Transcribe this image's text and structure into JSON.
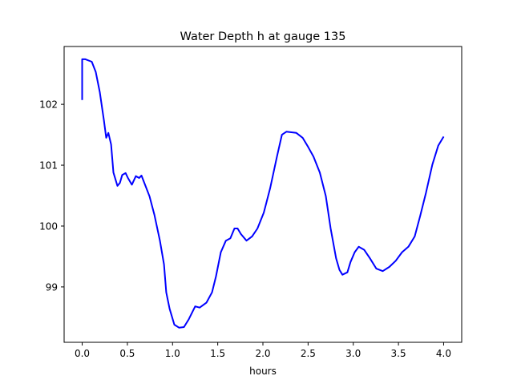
{
  "chart_data": {
    "type": "line",
    "title": "Water Depth h at gauge 135",
    "xlabel": "hours",
    "ylabel": "",
    "xlim": [
      -0.2,
      4.2
    ],
    "ylim": [
      98.09,
      102.95
    ],
    "xticks": [
      0.0,
      0.5,
      1.0,
      1.5,
      2.0,
      2.5,
      3.0,
      3.5,
      4.0
    ],
    "xtick_labels": [
      "0.0",
      "0.5",
      "1.0",
      "1.5",
      "2.0",
      "2.5",
      "3.0",
      "3.5",
      "4.0"
    ],
    "yticks": [
      99,
      100,
      101,
      102
    ],
    "ytick_labels": [
      "99",
      "100",
      "101",
      "102"
    ],
    "grid": false,
    "series": [
      {
        "name": "h",
        "color": "#0000ff",
        "x": [
          0,
          0,
          0.035,
          0.106,
          0.15,
          0.195,
          0.24,
          0.266,
          0.29,
          0.32,
          0.346,
          0.39,
          0.417,
          0.443,
          0.48,
          0.506,
          0.55,
          0.594,
          0.63,
          0.656,
          0.7,
          0.745,
          0.8,
          0.86,
          0.905,
          0.93,
          0.967,
          1.02,
          1.073,
          1.126,
          1.18,
          1.25,
          1.3,
          1.375,
          1.437,
          1.48,
          1.534,
          1.59,
          1.64,
          1.685,
          1.72,
          1.756,
          1.818,
          1.88,
          1.94,
          2.01,
          2.08,
          2.155,
          2.21,
          2.26,
          2.37,
          2.44,
          2.5,
          2.56,
          2.63,
          2.696,
          2.75,
          2.81,
          2.847,
          2.88,
          2.935,
          2.97,
          3.016,
          3.06,
          3.12,
          3.184,
          3.255,
          3.326,
          3.4,
          3.47,
          3.54,
          3.61,
          3.68,
          3.74,
          3.805,
          3.875,
          3.94,
          4.0
        ],
        "y": [
          102.07,
          102.74,
          102.74,
          102.7,
          102.53,
          102.2,
          101.74,
          101.45,
          101.53,
          101.34,
          100.88,
          100.66,
          100.71,
          100.84,
          100.87,
          100.79,
          100.68,
          100.82,
          100.79,
          100.83,
          100.66,
          100.49,
          100.18,
          99.76,
          99.37,
          98.91,
          98.64,
          98.38,
          98.33,
          98.34,
          98.47,
          98.68,
          98.66,
          98.74,
          98.91,
          99.17,
          99.57,
          99.76,
          99.8,
          99.96,
          99.96,
          99.87,
          99.76,
          99.83,
          99.96,
          100.22,
          100.62,
          101.14,
          101.5,
          101.55,
          101.53,
          101.45,
          101.3,
          101.14,
          100.88,
          100.49,
          99.96,
          99.47,
          99.28,
          99.2,
          99.24,
          99.41,
          99.57,
          99.66,
          99.61,
          99.47,
          99.3,
          99.26,
          99.33,
          99.43,
          99.57,
          99.66,
          99.83,
          100.16,
          100.55,
          101.01,
          101.32,
          101.47
        ]
      }
    ]
  }
}
